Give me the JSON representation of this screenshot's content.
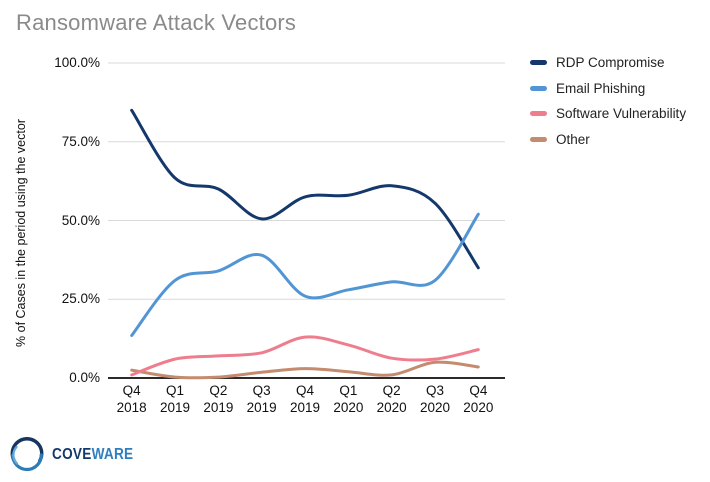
{
  "title": "Ransomware Attack Vectors",
  "chart_data": {
    "type": "line",
    "line_style": "spline",
    "title": "Ransomware Attack Vectors",
    "xlabel": "",
    "ylabel": "% of Cases in the period using the vector",
    "categories": [
      "Q4 2018",
      "Q1 2019",
      "Q2 2019",
      "Q3 2019",
      "Q4 2019",
      "Q1 2020",
      "Q2 2020",
      "Q3 2020",
      "Q4 2020"
    ],
    "y_ticks": [
      {
        "label": "100.0%",
        "value": 100
      },
      {
        "label": "75.0%",
        "value": 75
      },
      {
        "label": "50.0%",
        "value": 50
      },
      {
        "label": "25.0%",
        "value": 25
      },
      {
        "label": "0.0%",
        "value": 0
      }
    ],
    "ylim": [
      0,
      100
    ],
    "grid": true,
    "legend_position": "right",
    "series": [
      {
        "name": "RDP Compromise",
        "color": "#14386c",
        "values": [
          85,
          63.5,
          60,
          50.5,
          57.5,
          58,
          61,
          55.5,
          35
        ]
      },
      {
        "name": "Email Phishing",
        "color": "#5295d5",
        "values": [
          13.5,
          31,
          34,
          39,
          26,
          28,
          30.5,
          31,
          52
        ]
      },
      {
        "name": "Software Vulnerability",
        "color": "#ee7e8d",
        "values": [
          1,
          6,
          7,
          8,
          13,
          10.5,
          6.3,
          6,
          9
        ]
      },
      {
        "name": "Other",
        "color": "#c48b6e",
        "values": [
          2.5,
          0.3,
          0.3,
          1.8,
          3,
          2,
          1,
          5,
          3.5
        ]
      }
    ]
  },
  "colors": {
    "grid": "#d9d9d9",
    "axis": "#2b2b2b",
    "title_text": "#8a8a8a",
    "tick_text": "#111111"
  },
  "logo": {
    "part1": "COVE",
    "part2": "WARE",
    "part1_color": "#123a6b",
    "part2_color": "#2e7fc0"
  }
}
